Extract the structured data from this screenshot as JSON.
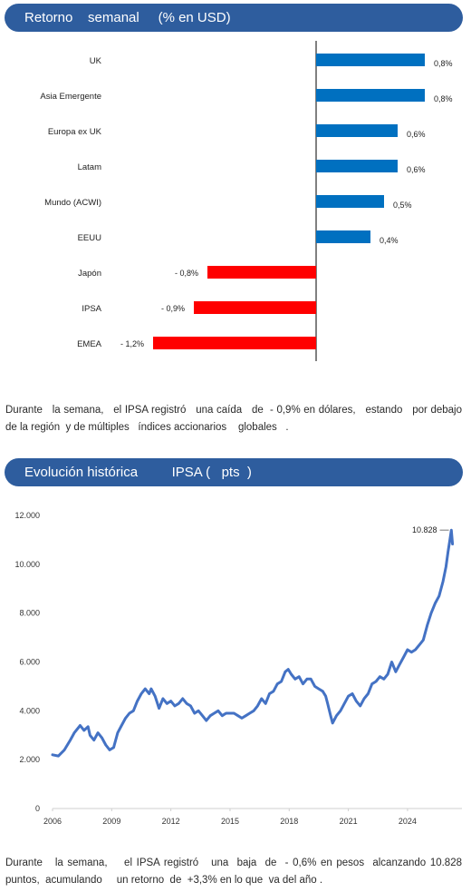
{
  "sections": {
    "weekly": {
      "title": "Retorno    semanal     (% en USD)",
      "note": "Durante   la semana,   el IPSA registró   una caída   de  - 0,9% en dólares,   estando   por debajo   de la región  y de múltiples   índices accionarios    globales   ."
    },
    "history": {
      "title": "Evolución histórica         IPSA (   pts  )",
      "note": "Durante   la semana,    el IPSA registró   una  baja  de  - 0,6% en pesos  alcanzando 10.828 puntos,  acumulando     un retorno  de  +3,3% en lo que  va del año ."
    }
  },
  "colors": {
    "positive": "#0070c0",
    "negative": "#ff0000",
    "line": "#4472c4",
    "banner": "#2e5d9e"
  },
  "chart_data": [
    {
      "type": "bar",
      "orientation": "horizontal",
      "categories": [
        "UK",
        "Asia Emergente",
        "Europa ex UK",
        "Latam",
        "Mundo (ACWI)",
        "EEUU",
        "Japón",
        "IPSA",
        "EMEA"
      ],
      "values": [
        0.8,
        0.8,
        0.6,
        0.6,
        0.5,
        0.4,
        -0.8,
        -0.9,
        -1.2
      ],
      "value_labels": [
        "0,8%",
        "0,8%",
        "0,6%",
        "0,6%",
        "0,5%",
        "0,4%",
        "- 0,8%",
        "- 0,9%",
        "- 1,2%"
      ]
    },
    {
      "type": "line",
      "x_ticks": [
        "2006",
        "2009",
        "2012",
        "2015",
        "2018",
        "2021",
        "2024"
      ],
      "y_ticks": [
        "0",
        "2.000",
        "4.000",
        "6.000",
        "8.000",
        "10.000",
        "12.000"
      ],
      "ylim": [
        0,
        12000
      ],
      "xlim": [
        2006,
        2026.3
      ],
      "last_value_label": "10.828",
      "series": [
        {
          "x": [
            2006.0,
            2006.3,
            2006.6,
            2006.9,
            2007.1,
            2007.4,
            2007.6,
            2007.8,
            2007.9,
            2008.1,
            2008.3,
            2008.5,
            2008.7,
            2008.9,
            2009.1,
            2009.3,
            2009.5,
            2009.7,
            2009.9,
            2010.1,
            2010.3,
            2010.5,
            2010.7,
            2010.9,
            2011.0,
            2011.2,
            2011.4,
            2011.6,
            2011.8,
            2012.0,
            2012.2,
            2012.4,
            2012.6,
            2012.8,
            2013.0,
            2013.2,
            2013.4,
            2013.6,
            2013.8,
            2014.0,
            2014.2,
            2014.4,
            2014.6,
            2014.8,
            2015.0,
            2015.2,
            2015.4,
            2015.6,
            2015.8,
            2016.0,
            2016.2,
            2016.4,
            2016.6,
            2016.8,
            2017.0,
            2017.2,
            2017.4,
            2017.6,
            2017.8,
            2017.95,
            2018.1,
            2018.3,
            2018.5,
            2018.7,
            2018.9,
            2019.1,
            2019.3,
            2019.5,
            2019.7,
            2019.85,
            2019.95,
            2020.1,
            2020.2,
            2020.4,
            2020.6,
            2020.8,
            2021.0,
            2021.2,
            2021.4,
            2021.6,
            2021.8,
            2022.0,
            2022.2,
            2022.4,
            2022.6,
            2022.8,
            2023.0,
            2023.2,
            2023.4,
            2023.6,
            2023.8,
            2024.0,
            2024.2,
            2024.4,
            2024.6,
            2024.8,
            2025.0,
            2025.2,
            2025.4,
            2025.6,
            2025.8,
            2025.95,
            2026.05,
            2026.15,
            2026.22,
            2026.28
          ],
          "y": [
            2200,
            2150,
            2400,
            2800,
            3100,
            3400,
            3200,
            3350,
            3000,
            2800,
            3100,
            2900,
            2600,
            2400,
            2500,
            3100,
            3400,
            3700,
            3900,
            4000,
            4400,
            4700,
            4900,
            4700,
            4900,
            4600,
            4100,
            4500,
            4300,
            4400,
            4200,
            4300,
            4500,
            4300,
            4200,
            3900,
            4000,
            3800,
            3600,
            3800,
            3900,
            4000,
            3800,
            3900,
            3900,
            3900,
            3800,
            3700,
            3800,
            3900,
            4000,
            4200,
            4500,
            4300,
            4700,
            4800,
            5100,
            5200,
            5600,
            5700,
            5500,
            5300,
            5400,
            5100,
            5300,
            5300,
            5000,
            4900,
            4800,
            4600,
            4300,
            3800,
            3500,
            3800,
            4000,
            4300,
            4600,
            4700,
            4400,
            4200,
            4500,
            4700,
            5100,
            5200,
            5400,
            5300,
            5500,
            6000,
            5600,
            5900,
            6200,
            6500,
            6400,
            6500,
            6700,
            6900,
            7500,
            8000,
            8400,
            8700,
            9300,
            9900,
            10500,
            11000,
            11400,
            10828
          ]
        }
      ]
    }
  ]
}
